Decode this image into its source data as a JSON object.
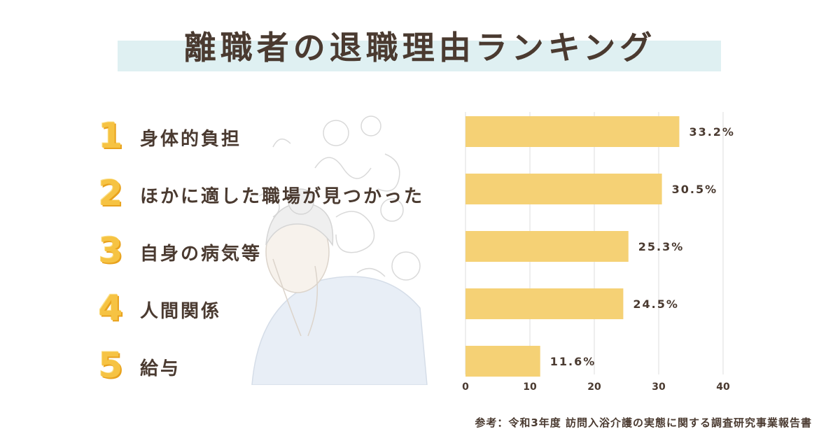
{
  "title": "離職者の退職理由ランキング",
  "ranking": [
    {
      "rank": "1",
      "label": "身体的負担"
    },
    {
      "rank": "2",
      "label": "ほかに適した職場が見つかった"
    },
    {
      "rank": "3",
      "label": "自身の病気等"
    },
    {
      "rank": "4",
      "label": "人間関係"
    },
    {
      "rank": "5",
      "label": "給与"
    }
  ],
  "chart_data": {
    "type": "bar",
    "orientation": "horizontal",
    "categories": [
      "身体的負担",
      "ほかに適した職場が見つかった",
      "自身の病気等",
      "人間関係",
      "給与"
    ],
    "values": [
      33.2,
      30.5,
      25.3,
      24.5,
      11.6
    ],
    "value_labels": [
      "33.2%",
      "30.5%",
      "25.3%",
      "24.5%",
      "11.6%"
    ],
    "xlim": [
      0,
      40
    ],
    "xticks": [
      "0",
      "10",
      "20",
      "30",
      "40"
    ],
    "grid": true,
    "bar_color": "#f5d175"
  },
  "source": "参考：令和3年度 訪問入浴介護の実態に関する調査研究事業報告書"
}
